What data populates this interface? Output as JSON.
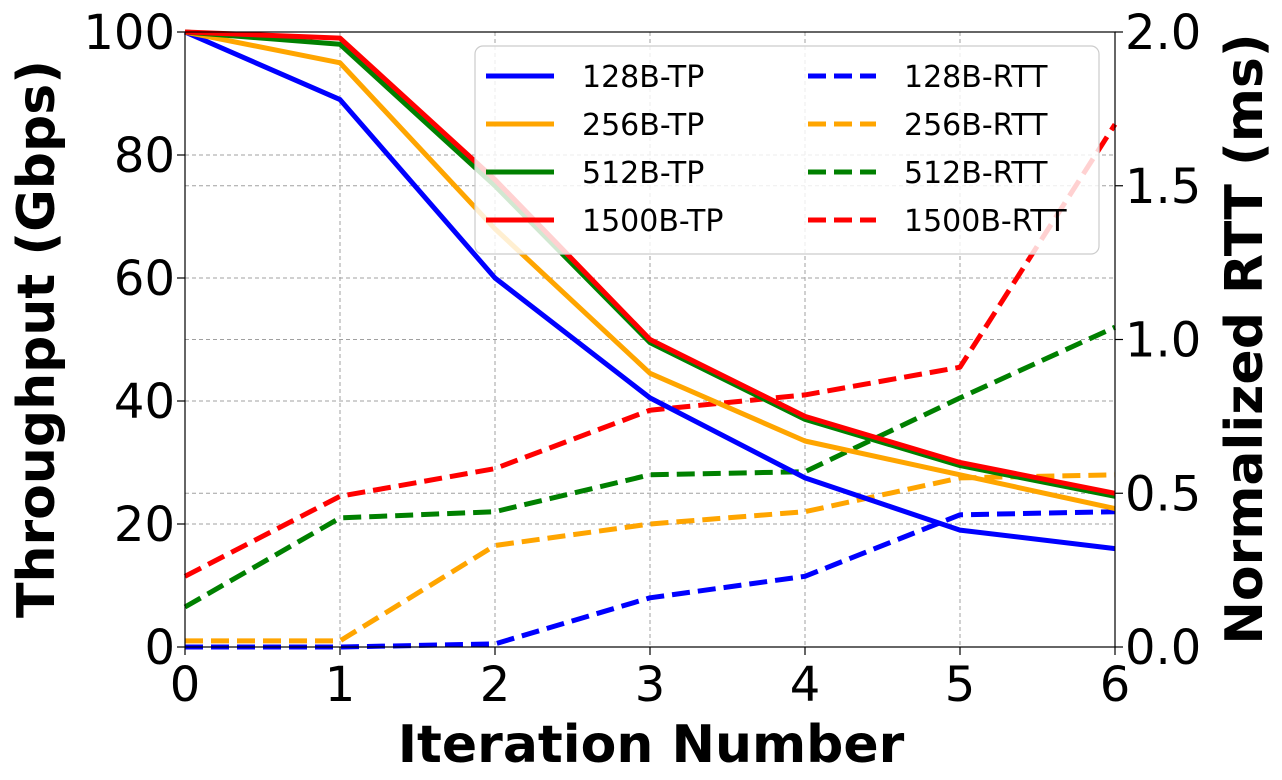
{
  "chart_data": {
    "type": "line",
    "title": "",
    "xlabel": "Iteration Number",
    "ylabel": "Throughput (Gbps)",
    "y2label": "Normalized RTT (ms)",
    "x": [
      0,
      1,
      2,
      3,
      4,
      5,
      6
    ],
    "xlim": [
      0,
      6
    ],
    "ylim": [
      0,
      100
    ],
    "y2lim": [
      0,
      2.0
    ],
    "xticks": [
      "0",
      "1",
      "2",
      "3",
      "4",
      "5",
      "6"
    ],
    "yticks": [
      "0",
      "20",
      "40",
      "60",
      "80",
      "100"
    ],
    "y2ticks": [
      "0.0",
      "0.5",
      "1.0",
      "1.5",
      "2.0"
    ],
    "grid": true,
    "legend": {
      "placement": "top-right",
      "columns": 2
    },
    "series": [
      {
        "name": "128B-TP",
        "axis": "left",
        "style": "solid",
        "color": "#0000ff",
        "values": [
          100,
          89,
          60,
          40.5,
          27.5,
          19,
          16
        ]
      },
      {
        "name": "256B-TP",
        "axis": "left",
        "style": "solid",
        "color": "#ffa500",
        "values": [
          100,
          95,
          68,
          44.5,
          33.5,
          28,
          22.5
        ]
      },
      {
        "name": "512B-TP",
        "axis": "left",
        "style": "solid",
        "color": "#008000",
        "values": [
          100,
          98,
          75,
          49.5,
          37,
          29.5,
          24.5
        ]
      },
      {
        "name": "1500B-TP",
        "axis": "left",
        "style": "solid",
        "color": "#ff0000",
        "values": [
          100,
          99,
          76,
          50,
          37.5,
          30,
          25
        ]
      },
      {
        "name": "128B-RTT",
        "axis": "right",
        "style": "dashed",
        "color": "#0000ff",
        "values": [
          0.0,
          0.0,
          0.01,
          0.16,
          0.23,
          0.43,
          0.44
        ]
      },
      {
        "name": "256B-RTT",
        "axis": "right",
        "style": "dashed",
        "color": "#ffa500",
        "values": [
          0.02,
          0.02,
          0.33,
          0.4,
          0.44,
          0.55,
          0.56
        ]
      },
      {
        "name": "512B-RTT",
        "axis": "right",
        "style": "dashed",
        "color": "#008000",
        "values": [
          0.13,
          0.42,
          0.44,
          0.56,
          0.57,
          0.81,
          1.04
        ]
      },
      {
        "name": "1500B-RTT",
        "axis": "right",
        "style": "dashed",
        "color": "#ff0000",
        "values": [
          0.23,
          0.49,
          0.58,
          0.77,
          0.82,
          0.91,
          1.7
        ]
      }
    ]
  }
}
